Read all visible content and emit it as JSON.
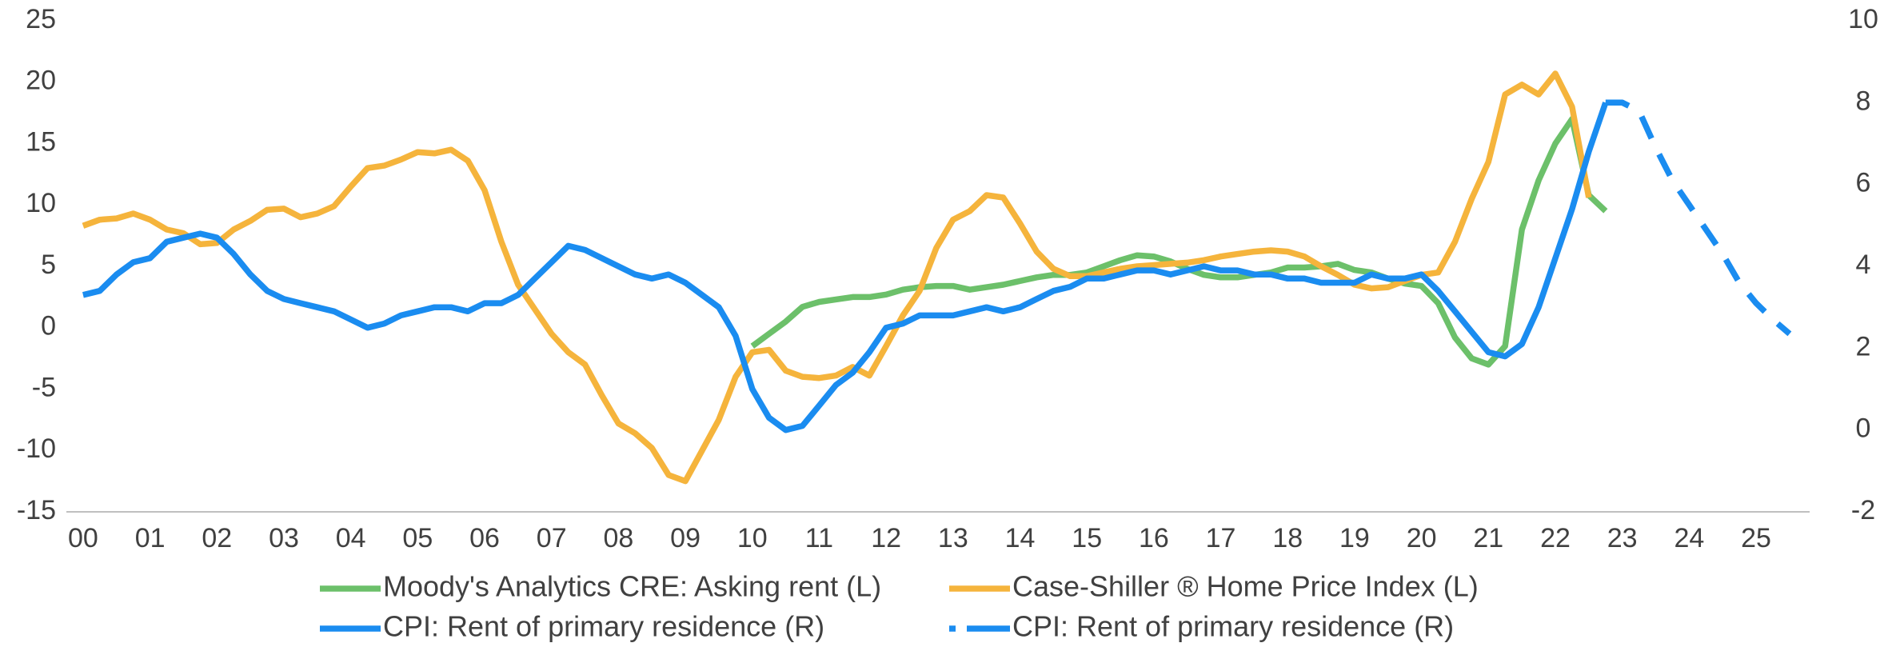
{
  "chart_data": {
    "type": "line",
    "xlim": [
      -0.25,
      25.8
    ],
    "ylim": [
      -15,
      25
    ],
    "y2lim": [
      -2,
      10
    ],
    "yticks": [
      -15,
      -10,
      -5,
      0,
      5,
      10,
      15,
      20,
      25
    ],
    "y2ticks": [
      -2,
      0,
      2,
      4,
      6,
      8,
      10
    ],
    "xticks": [
      {
        "value": 0,
        "label": "00"
      },
      {
        "value": 1,
        "label": "01"
      },
      {
        "value": 2,
        "label": "02"
      },
      {
        "value": 3,
        "label": "03"
      },
      {
        "value": 4,
        "label": "04"
      },
      {
        "value": 5,
        "label": "05"
      },
      {
        "value": 6,
        "label": "06"
      },
      {
        "value": 7,
        "label": "07"
      },
      {
        "value": 8,
        "label": "08"
      },
      {
        "value": 9,
        "label": "09"
      },
      {
        "value": 10,
        "label": "10"
      },
      {
        "value": 11,
        "label": "11"
      },
      {
        "value": 12,
        "label": "12"
      },
      {
        "value": 13,
        "label": "13"
      },
      {
        "value": 14,
        "label": "14"
      },
      {
        "value": 15,
        "label": "15"
      },
      {
        "value": 16,
        "label": "16"
      },
      {
        "value": 17,
        "label": "17"
      },
      {
        "value": 18,
        "label": "18"
      },
      {
        "value": 19,
        "label": "19"
      },
      {
        "value": 20,
        "label": "20"
      },
      {
        "value": 21,
        "label": "21"
      },
      {
        "value": 22,
        "label": "22"
      },
      {
        "value": 23,
        "label": "23"
      },
      {
        "value": 24,
        "label": "24"
      },
      {
        "value": 25,
        "label": "25"
      }
    ],
    "grid": false,
    "series": [
      {
        "name": "Moody's Analytics CRE: Asking rent (L)",
        "color": "#6cc06a",
        "axis": "y",
        "dash": false,
        "x": [
          10,
          10.25,
          10.5,
          10.75,
          11,
          11.25,
          11.5,
          11.75,
          12,
          12.25,
          12.5,
          12.75,
          13,
          13.25,
          13.5,
          13.75,
          14,
          14.25,
          14.5,
          14.75,
          15,
          15.25,
          15.5,
          15.75,
          16,
          16.25,
          16.5,
          16.75,
          17,
          17.25,
          17.5,
          17.75,
          18,
          18.25,
          18.5,
          18.75,
          19,
          19.25,
          19.5,
          19.75,
          20,
          20.25,
          20.5,
          20.75,
          21,
          21.25,
          21.5,
          21.75,
          22,
          22.25,
          22.5,
          22.75
        ],
        "values": [
          -1.5,
          -0.5,
          0.5,
          1.7,
          2.1,
          2.3,
          2.5,
          2.5,
          2.7,
          3.1,
          3.3,
          3.4,
          3.4,
          3.1,
          3.3,
          3.5,
          3.8,
          4.1,
          4.3,
          4.3,
          4.5,
          5.0,
          5.5,
          5.9,
          5.8,
          5.4,
          4.8,
          4.3,
          4.1,
          4.1,
          4.3,
          4.5,
          4.9,
          4.9,
          5.0,
          5.2,
          4.7,
          4.5,
          4.0,
          3.6,
          3.4,
          2.0,
          -0.8,
          -2.5,
          -3.0,
          -1.5,
          8.0,
          12.0,
          15.0,
          17.0,
          10.8,
          9.5
        ]
      },
      {
        "name": "Case-Shiller ® Home Price Index (L)",
        "color": "#f5b43c",
        "axis": "y",
        "dash": false,
        "x": [
          0,
          0.25,
          0.5,
          0.75,
          1,
          1.25,
          1.5,
          1.75,
          2,
          2.25,
          2.5,
          2.75,
          3,
          3.25,
          3.5,
          3.75,
          4,
          4.25,
          4.5,
          4.75,
          5,
          5.25,
          5.5,
          5.75,
          6,
          6.25,
          6.5,
          6.75,
          7,
          7.25,
          7.5,
          7.75,
          8,
          8.25,
          8.5,
          8.75,
          9,
          9.25,
          9.5,
          9.75,
          10,
          10.25,
          10.5,
          10.75,
          11,
          11.25,
          11.5,
          11.75,
          12,
          12.25,
          12.5,
          12.75,
          13,
          13.25,
          13.5,
          13.75,
          14,
          14.25,
          14.5,
          14.75,
          15,
          15.25,
          15.5,
          15.75,
          16,
          16.25,
          16.5,
          16.75,
          17,
          17.25,
          17.5,
          17.75,
          18,
          18.25,
          18.5,
          18.75,
          19,
          19.25,
          19.5,
          19.75,
          20,
          20.25,
          20.5,
          20.75,
          21,
          21.25,
          21.5,
          21.75,
          22,
          22.25,
          22.5
        ],
        "values": [
          8.3,
          8.8,
          8.9,
          9.3,
          8.8,
          8.0,
          7.7,
          6.8,
          6.9,
          8.0,
          8.7,
          9.6,
          9.7,
          9.0,
          9.3,
          9.9,
          11.5,
          13.0,
          13.2,
          13.7,
          14.3,
          14.2,
          14.5,
          13.6,
          11.2,
          7.0,
          3.5,
          1.5,
          -0.5,
          -2.0,
          -3.0,
          -5.5,
          -7.8,
          -8.6,
          -9.8,
          -12.0,
          -12.5,
          -10.0,
          -7.5,
          -4.0,
          -2.0,
          -1.8,
          -3.5,
          -4.0,
          -4.1,
          -3.9,
          -3.2,
          -3.9,
          -1.5,
          1.0,
          3.0,
          6.5,
          8.8,
          9.5,
          10.8,
          10.6,
          8.5,
          6.2,
          4.8,
          4.2,
          4.2,
          4.5,
          4.8,
          5.0,
          5.1,
          5.2,
          5.3,
          5.5,
          5.8,
          6.0,
          6.2,
          6.3,
          6.2,
          5.8,
          5.0,
          4.3,
          3.5,
          3.2,
          3.3,
          3.8,
          4.3,
          4.5,
          7.0,
          10.5,
          13.5,
          19.0,
          19.8,
          19.0,
          20.7,
          18.0,
          10.6
        ]
      },
      {
        "name": "CPI: Rent of primary residence (R)",
        "color": "#1a8cf0",
        "axis": "y2",
        "dash": false,
        "x": [
          0,
          0.25,
          0.5,
          0.75,
          1,
          1.25,
          1.5,
          1.75,
          2,
          2.25,
          2.5,
          2.75,
          3,
          3.25,
          3.5,
          3.75,
          4,
          4.25,
          4.5,
          4.75,
          5,
          5.25,
          5.5,
          5.75,
          6,
          6.25,
          6.5,
          6.75,
          7,
          7.25,
          7.5,
          7.75,
          8,
          8.25,
          8.5,
          8.75,
          9,
          9.25,
          9.5,
          9.75,
          10,
          10.25,
          10.5,
          10.75,
          11,
          11.25,
          11.5,
          11.75,
          12,
          12.25,
          12.5,
          12.75,
          13,
          13.25,
          13.5,
          13.75,
          14,
          14.25,
          14.5,
          14.75,
          15,
          15.25,
          15.5,
          15.75,
          16,
          16.25,
          16.5,
          16.75,
          17,
          17.25,
          17.5,
          17.75,
          18,
          18.25,
          18.5,
          18.75,
          19,
          19.25,
          19.5,
          19.75,
          20,
          20.25,
          20.5,
          20.75,
          21,
          21.25,
          21.5,
          21.75,
          22,
          22.25,
          22.5,
          22.75
        ],
        "values": [
          3.3,
          3.4,
          3.8,
          4.1,
          4.2,
          4.6,
          4.7,
          4.8,
          4.7,
          4.3,
          3.8,
          3.4,
          3.2,
          3.1,
          3.0,
          2.9,
          2.7,
          2.5,
          2.6,
          2.8,
          2.9,
          3.0,
          3.0,
          2.9,
          3.1,
          3.1,
          3.3,
          3.7,
          4.1,
          4.5,
          4.4,
          4.2,
          4.0,
          3.8,
          3.7,
          3.8,
          3.6,
          3.3,
          3.0,
          2.3,
          1.0,
          0.3,
          0.0,
          0.1,
          0.6,
          1.1,
          1.4,
          1.9,
          2.5,
          2.6,
          2.8,
          2.8,
          2.8,
          2.9,
          3.0,
          2.9,
          3.0,
          3.2,
          3.4,
          3.5,
          3.7,
          3.7,
          3.8,
          3.9,
          3.9,
          3.8,
          3.9,
          4.0,
          3.9,
          3.9,
          3.8,
          3.8,
          3.7,
          3.7,
          3.6,
          3.6,
          3.6,
          3.8,
          3.7,
          3.7,
          3.8,
          3.4,
          2.9,
          2.4,
          1.9,
          1.8,
          2.1,
          3.0,
          4.2,
          5.4,
          6.8,
          8.0
        ]
      },
      {
        "name": "CPI: Rent of primary residence (R)",
        "color": "#1a8cf0",
        "axis": "y2",
        "dash": true,
        "x": [
          22.75,
          23,
          23.25,
          23.5,
          23.75,
          24,
          24.25,
          24.5,
          24.75,
          25,
          25.25,
          25.5
        ],
        "values": [
          8.0,
          8.0,
          7.8,
          6.9,
          6.1,
          5.5,
          4.9,
          4.3,
          3.6,
          3.1,
          2.7,
          2.35
        ]
      }
    ]
  }
}
